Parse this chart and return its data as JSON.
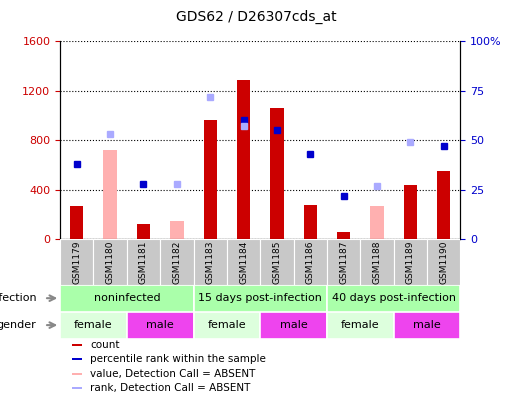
{
  "title": "GDS62 / D26307cds_at",
  "samples": [
    "GSM1179",
    "GSM1180",
    "GSM1181",
    "GSM1182",
    "GSM1183",
    "GSM1184",
    "GSM1185",
    "GSM1186",
    "GSM1187",
    "GSM1188",
    "GSM1189",
    "GSM1190"
  ],
  "count_values": [
    270,
    null,
    120,
    null,
    960,
    1290,
    1060,
    280,
    60,
    null,
    440,
    550
  ],
  "count_absent": [
    null,
    720,
    null,
    150,
    null,
    null,
    null,
    null,
    null,
    270,
    null,
    null
  ],
  "rank_values": [
    38,
    null,
    28,
    null,
    null,
    60,
    55,
    43,
    22,
    null,
    null,
    47
  ],
  "rank_absent": [
    null,
    53,
    null,
    28,
    72,
    57,
    null,
    null,
    null,
    27,
    49,
    null
  ],
  "ylim_left": [
    0,
    1600
  ],
  "ylim_right": [
    0,
    100
  ],
  "yticks_left": [
    0,
    400,
    800,
    1200,
    1600
  ],
  "yticks_right": [
    0,
    25,
    50,
    75,
    100
  ],
  "yticklabels_left": [
    "0",
    "400",
    "800",
    "1200",
    "1600"
  ],
  "yticklabels_right": [
    "0",
    "25",
    "50",
    "75",
    "100%"
  ],
  "bar_color": "#cc0000",
  "bar_absent_color": "#ffb0b0",
  "dot_color": "#0000cc",
  "dot_absent_color": "#aaaaff",
  "infection_groups": [
    {
      "label": "noninfected",
      "start": 0,
      "end": 4
    },
    {
      "label": "15 days post-infection",
      "start": 4,
      "end": 8
    },
    {
      "label": "40 days post-infection",
      "start": 8,
      "end": 12
    }
  ],
  "gender_groups": [
    {
      "label": "female",
      "start": 0,
      "end": 2
    },
    {
      "label": "male",
      "start": 2,
      "end": 4
    },
    {
      "label": "female",
      "start": 4,
      "end": 6
    },
    {
      "label": "male",
      "start": 6,
      "end": 8
    },
    {
      "label": "female",
      "start": 8,
      "end": 10
    },
    {
      "label": "male",
      "start": 10,
      "end": 12
    }
  ],
  "infection_color": "#aaffaa",
  "gender_female_color": "#ddffdd",
  "gender_male_color": "#ee44ee",
  "label_bg_color": "#c8c8c8",
  "legend_items": [
    {
      "label": "count",
      "color": "#cc0000"
    },
    {
      "label": "percentile rank within the sample",
      "color": "#0000cc"
    },
    {
      "label": "value, Detection Call = ABSENT",
      "color": "#ffb0b0"
    },
    {
      "label": "rank, Detection Call = ABSENT",
      "color": "#aaaaff"
    }
  ],
  "title_fontsize": 10,
  "tick_fontsize": 8,
  "label_fontsize": 8,
  "sample_fontsize": 6.5,
  "row_fontsize": 8,
  "legend_fontsize": 7.5
}
